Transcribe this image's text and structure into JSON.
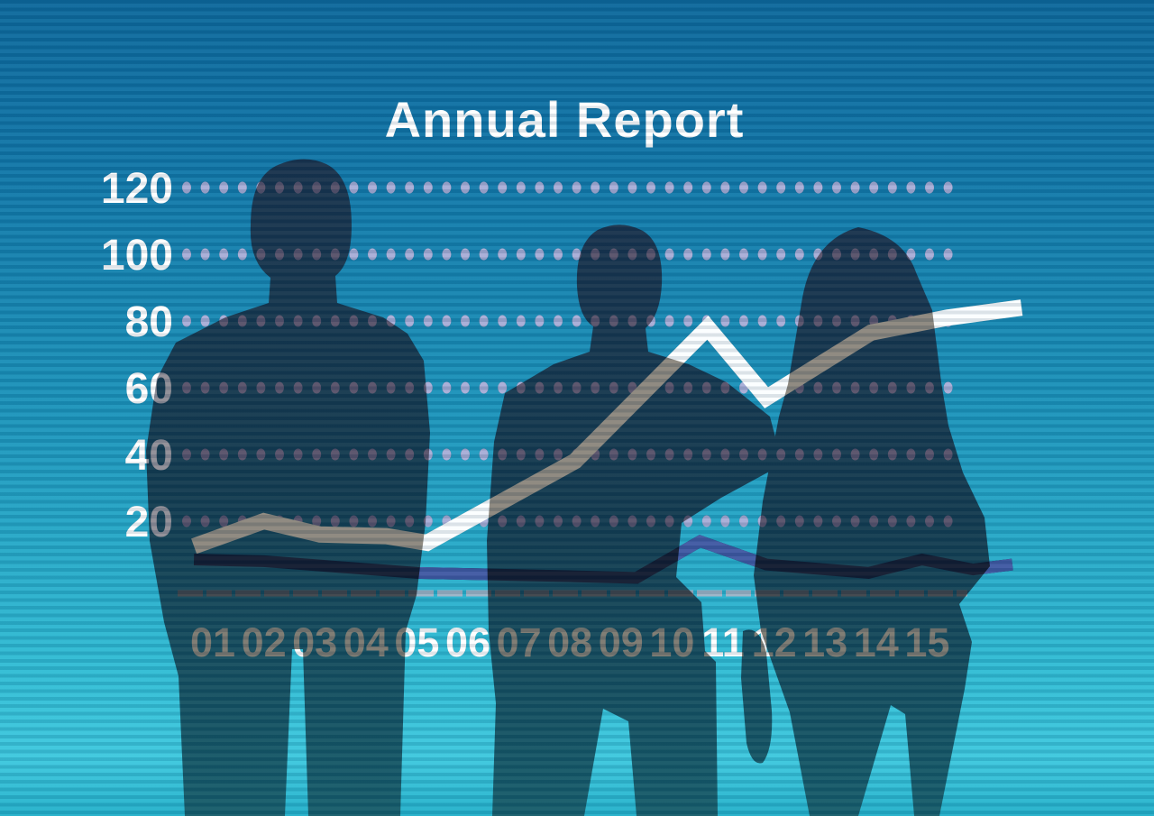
{
  "title": "Annual Report",
  "chart_data": {
    "type": "line",
    "title": "Annual Report",
    "x_labels": [
      "01",
      "02",
      "03",
      "04",
      "05",
      "06",
      "07",
      "08",
      "09",
      "10",
      "11",
      "12",
      "13",
      "14",
      "15"
    ],
    "y_ticks": [
      120,
      100,
      80,
      60,
      40,
      20
    ],
    "ylim": [
      0,
      130
    ],
    "grid": "horizontal dotted gridlines at each y tick, no vertical gridlines",
    "legend_position": "none",
    "series": [
      {
        "name": "main trend line",
        "values_at_x_labels": [
          14,
          20,
          16,
          16,
          14,
          20,
          29,
          37,
          52,
          67,
          73,
          58,
          68,
          77,
          80
        ],
        "vertices_x_value": [
          [
            0.63,
            12.5
          ],
          [
            2,
            20
          ],
          [
            3.1,
            16
          ],
          [
            4.4,
            15.5
          ],
          [
            5.2,
            13.5
          ],
          [
            8.1,
            38
          ],
          [
            10.7,
            78
          ],
          [
            11.85,
            57
          ],
          [
            13.9,
            76.5
          ],
          [
            15.4,
            81
          ],
          [
            16.85,
            84
          ]
        ],
        "color_over_background": "#fbfeff",
        "color_over_silhouette": "#8b867c",
        "stroke_width": 18
      },
      {
        "name": "secondary flat line",
        "values_at_x_labels": [
          8,
          8,
          7,
          6,
          4.5,
          4,
          4,
          3.5,
          3,
          9,
          11,
          7,
          5.5,
          5,
          8
        ],
        "vertices_x_value": [
          [
            0.63,
            8.5
          ],
          [
            2,
            8
          ],
          [
            5,
            4.5
          ],
          [
            8,
            3.5
          ],
          [
            9.3,
            3
          ],
          [
            10.55,
            14
          ],
          [
            11.85,
            7
          ],
          [
            13.85,
            4.5
          ],
          [
            14.9,
            8.5
          ],
          [
            15.9,
            5.5
          ],
          [
            16.67,
            7
          ]
        ],
        "color_over_background": "#3f58a2",
        "color_over_silhouette": "#10192e",
        "stroke_width": 13
      }
    ],
    "baseline": {
      "value": 0,
      "style": "dashed",
      "color_over_background": "#9cb3c6",
      "color_over_silhouette": "#3e4349"
    },
    "gridline_dot_colors": {
      "over_background": "#a7add6",
      "over_silhouette": "#575169"
    },
    "y_label_colors": {
      "over_background": "#ffffff",
      "over_silhouette": "#8f8d95"
    },
    "x_label_colors": {
      "over_background": "#ffffff",
      "over_silhouette": "#7b786f"
    },
    "title_color": "#ffffff"
  },
  "decorations": {
    "background": {
      "top_color": "#0c689b",
      "bottom_color": "#3cc8de",
      "texture": "horizontal scanline stripes"
    },
    "silhouettes": {
      "count": 3,
      "description": "three business people seen from behind looking at the chart",
      "figures": [
        "broad-shouldered man",
        "man with short hair",
        "woman with long hair"
      ],
      "color": "#14334a"
    }
  }
}
